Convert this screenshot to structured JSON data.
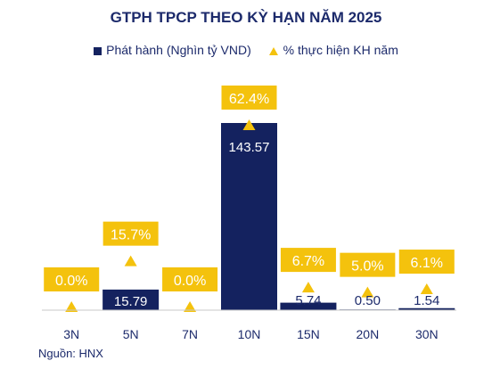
{
  "legend": {
    "bar_label": "Phát hành (Nghìn tỷ VND)",
    "line_label": "% thực hiện KH năm"
  },
  "source": "Nguồn: HNX",
  "colors": {
    "bar": "#14225f",
    "marker": "#f4c20d",
    "text": "#1c2a6b"
  },
  "chart_data": {
    "type": "bar",
    "title": "GTPH TPCP THEO KỲ HẠN NĂM 2025",
    "categories": [
      "3N",
      "5N",
      "7N",
      "10N",
      "15N",
      "20N",
      "30N"
    ],
    "series": [
      {
        "name": "Phát hành (Nghìn tỷ VND)",
        "type": "bar",
        "values": [
          0,
          15.79,
          0,
          143.57,
          5.74,
          0.5,
          1.54
        ],
        "labels": [
          "",
          "15.79",
          "",
          "143.57",
          "5.74",
          "0.50",
          "1.54"
        ]
      },
      {
        "name": "% thực hiện KH năm",
        "type": "scatter",
        "values": [
          0.0,
          15.7,
          0.0,
          62.4,
          6.7,
          5.0,
          6.1
        ],
        "labels": [
          "0.0%",
          "15.7%",
          "0.0%",
          "62.4%",
          "6.7%",
          "5.0%",
          "6.1%"
        ]
      }
    ],
    "xlabel": "",
    "ylabel": "",
    "grid": false,
    "legend_position": "top"
  }
}
